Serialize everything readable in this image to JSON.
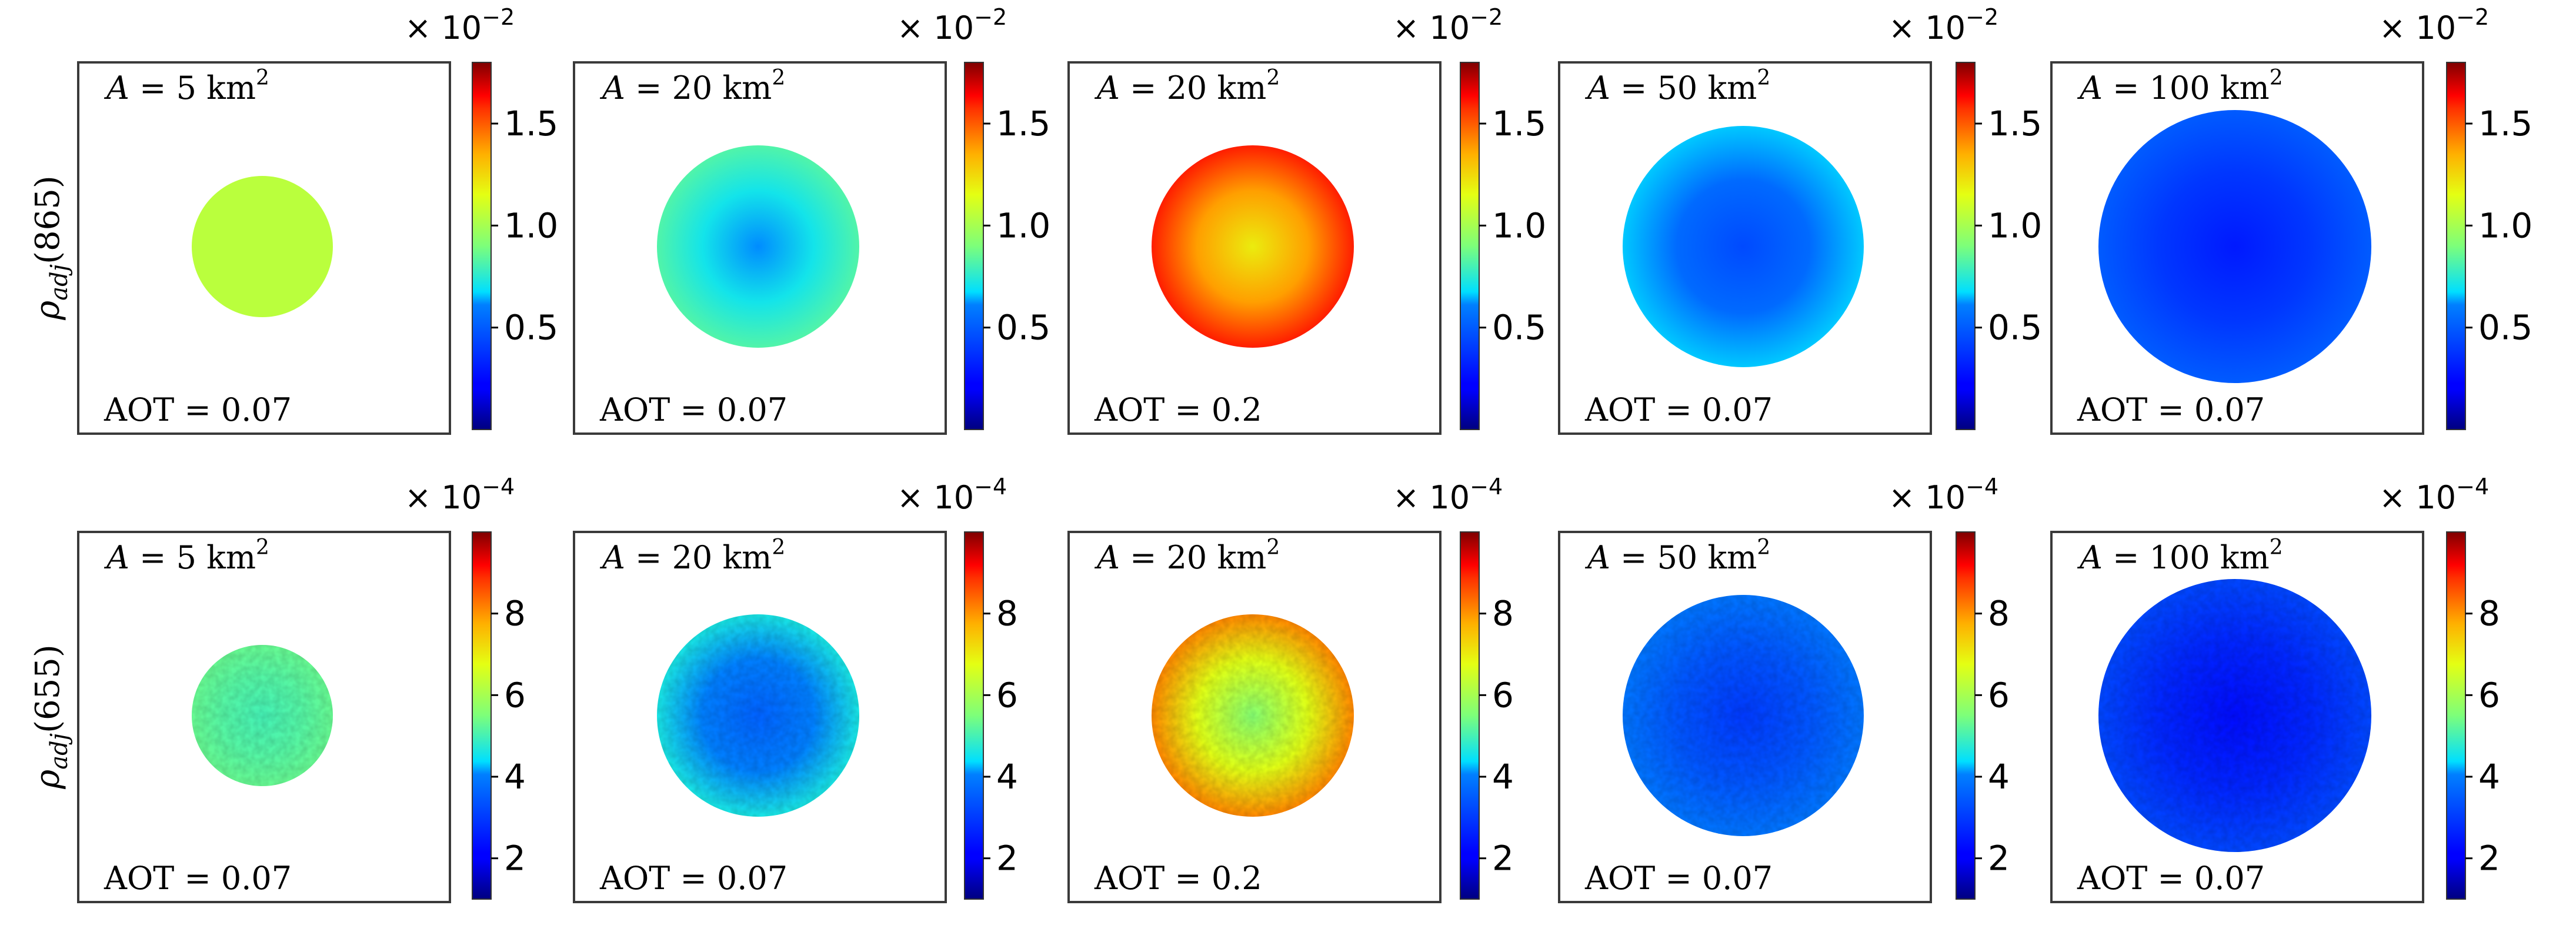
{
  "chart_data": {
    "type": "heatmap",
    "title": "",
    "rows": [
      {
        "ylabel": "ρ_adj(865)",
        "ylabel_main": "ρ",
        "ylabel_sub": "adj",
        "ylabel_tail": "(865)",
        "colorbar": {
          "multiplier": "× 10",
          "multiplier_exp": "−2",
          "range": [
            0.0,
            1.8
          ],
          "ticks": [
            0.5,
            1.0,
            1.5
          ],
          "tick_labels": [
            "0.5",
            "1.0",
            "1.5"
          ],
          "colormap": "jet"
        }
      },
      {
        "ylabel": "ρ_adj(655)",
        "ylabel_main": "ρ",
        "ylabel_sub": "adj",
        "ylabel_tail": "(655)",
        "colorbar": {
          "multiplier": "× 10",
          "multiplier_exp": "−4",
          "range": [
            1.0,
            10.0
          ],
          "ticks": [
            2,
            4,
            6,
            8
          ],
          "tick_labels": [
            "2",
            "4",
            "6",
            "8"
          ],
          "colormap": "jet"
        }
      }
    ],
    "panels": [
      {
        "row": 0,
        "col": 0,
        "area_km2": 5,
        "area_label": "A = 5 km",
        "aot": 0.07,
        "aot_label": "AOT = 0.07",
        "center_value": 1.05,
        "edge_value": 1.05,
        "noise": false
      },
      {
        "row": 0,
        "col": 1,
        "area_km2": 20,
        "area_label": "A = 20 km",
        "aot": 0.07,
        "aot_label": "AOT = 0.07",
        "center_value": 0.62,
        "edge_value": 0.82,
        "noise": false
      },
      {
        "row": 0,
        "col": 2,
        "area_km2": 20,
        "area_label": "A = 20 km",
        "aot": 0.2,
        "aot_label": "AOT = 0.2",
        "center_value": 1.2,
        "edge_value": 1.6,
        "noise": false
      },
      {
        "row": 0,
        "col": 3,
        "area_km2": 50,
        "area_label": "A = 50 km",
        "aot": 0.07,
        "aot_label": "AOT = 0.07",
        "center_value": 0.45,
        "edge_value": 0.66,
        "noise": false
      },
      {
        "row": 0,
        "col": 4,
        "area_km2": 100,
        "area_label": "A = 100 km",
        "aot": 0.07,
        "aot_label": "AOT = 0.07",
        "center_value": 0.3,
        "edge_value": 0.5,
        "noise": false
      },
      {
        "row": 1,
        "col": 0,
        "area_km2": 5,
        "area_label": "A = 5 km",
        "aot": 0.07,
        "aot_label": "AOT = 0.07",
        "center_value": 5.0,
        "edge_value": 5.3,
        "noise": true
      },
      {
        "row": 1,
        "col": 1,
        "area_km2": 20,
        "area_label": "A = 20 km",
        "aot": 0.07,
        "aot_label": "AOT = 0.07",
        "center_value": 3.6,
        "edge_value": 4.6,
        "noise": true
      },
      {
        "row": 1,
        "col": 2,
        "area_km2": 20,
        "area_label": "A = 20 km",
        "aot": 0.2,
        "aot_label": "AOT = 0.2",
        "center_value": 5.6,
        "edge_value": 8.1,
        "noise": true
      },
      {
        "row": 1,
        "col": 3,
        "area_km2": 50,
        "area_label": "A = 50 km",
        "aot": 0.07,
        "aot_label": "AOT = 0.07",
        "center_value": 3.0,
        "edge_value": 3.9,
        "noise": true
      },
      {
        "row": 1,
        "col": 4,
        "area_km2": 100,
        "area_label": "A = 100 km",
        "aot": 0.07,
        "aot_label": "AOT = 0.07",
        "center_value": 2.3,
        "edge_value": 3.2,
        "noise": true
      }
    ],
    "area_unit_exp": "2"
  }
}
